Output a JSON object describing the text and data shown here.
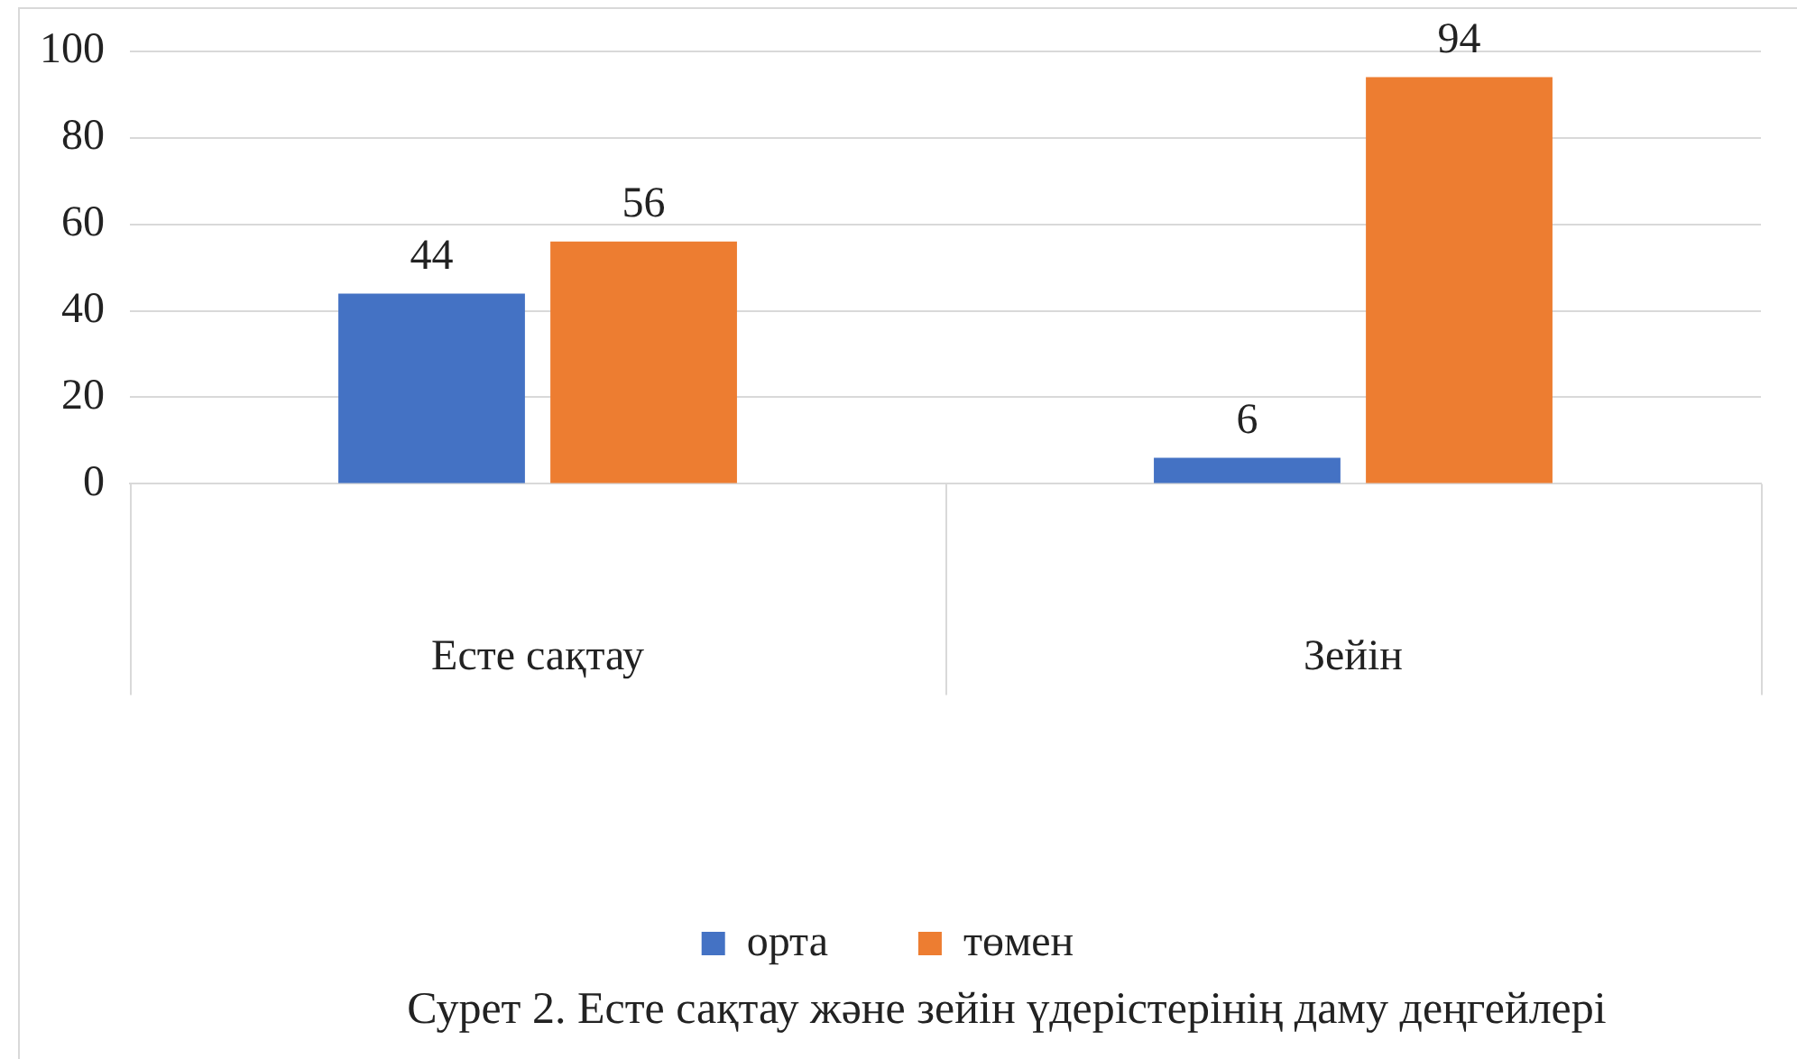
{
  "chart_data": {
    "type": "bar",
    "categories": [
      "Есте сақтау",
      "Зейін"
    ],
    "series": [
      {
        "name": "орта",
        "color": "#4472c4",
        "values": [
          44,
          6
        ]
      },
      {
        "name": "төмен",
        "color": "#ed7d31",
        "values": [
          56,
          94
        ]
      }
    ],
    "ylim": [
      0,
      100
    ],
    "yticks": [
      0,
      20,
      40,
      60,
      80,
      100
    ],
    "grid": "y",
    "legend": "bottom",
    "data_labels": true,
    "annotations": [
      "Сурет 2. Есте сақтау және зейін үдерістерінің даму деңгейлері"
    ]
  }
}
